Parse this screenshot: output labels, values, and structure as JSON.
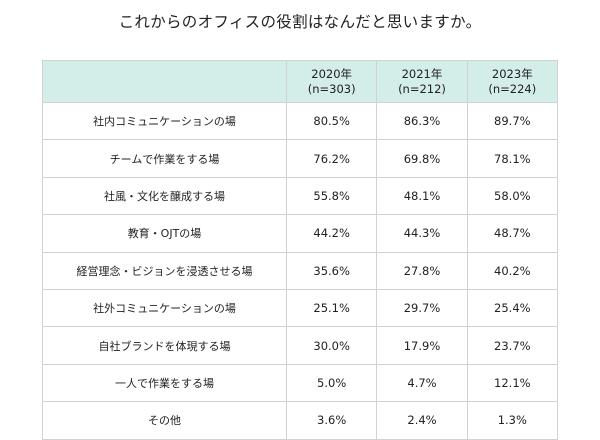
{
  "title": "これからのオフィスの役割はなんだと思いますか。",
  "chart_data": {
    "type": "table",
    "columns": [
      {
        "year": "2020年",
        "n": "(n=303)"
      },
      {
        "year": "2021年",
        "n": "(n=212)"
      },
      {
        "year": "2023年",
        "n": "(n=224)"
      }
    ],
    "rows": [
      {
        "label": "社内コミュニケーションの場",
        "values": [
          "80.5%",
          "86.3%",
          "89.7%"
        ]
      },
      {
        "label": "チームで作業をする場",
        "values": [
          "76.2%",
          "69.8%",
          "78.1%"
        ]
      },
      {
        "label": "社風・文化を醸成する場",
        "values": [
          "55.8%",
          "48.1%",
          "58.0%"
        ]
      },
      {
        "label": "教育・OJTの場",
        "values": [
          "44.2%",
          "44.3%",
          "48.7%"
        ]
      },
      {
        "label": "経営理念・ビジョンを浸透させる場",
        "values": [
          "35.6%",
          "27.8%",
          "40.2%"
        ]
      },
      {
        "label": "社外コミュニケーションの場",
        "values": [
          "25.1%",
          "29.7%",
          "25.4%"
        ]
      },
      {
        "label": "自社ブランドを体現する場",
        "values": [
          "30.0%",
          "17.9%",
          "23.7%"
        ]
      },
      {
        "label": "一人で作業をする場",
        "values": [
          "5.0%",
          "4.7%",
          "12.1%"
        ]
      },
      {
        "label": "その他",
        "values": [
          "3.6%",
          "2.4%",
          "1.3%"
        ]
      }
    ]
  },
  "colors": {
    "header_bg": "#d3ede9",
    "border": "#d2d2d2",
    "text": "#222222"
  }
}
